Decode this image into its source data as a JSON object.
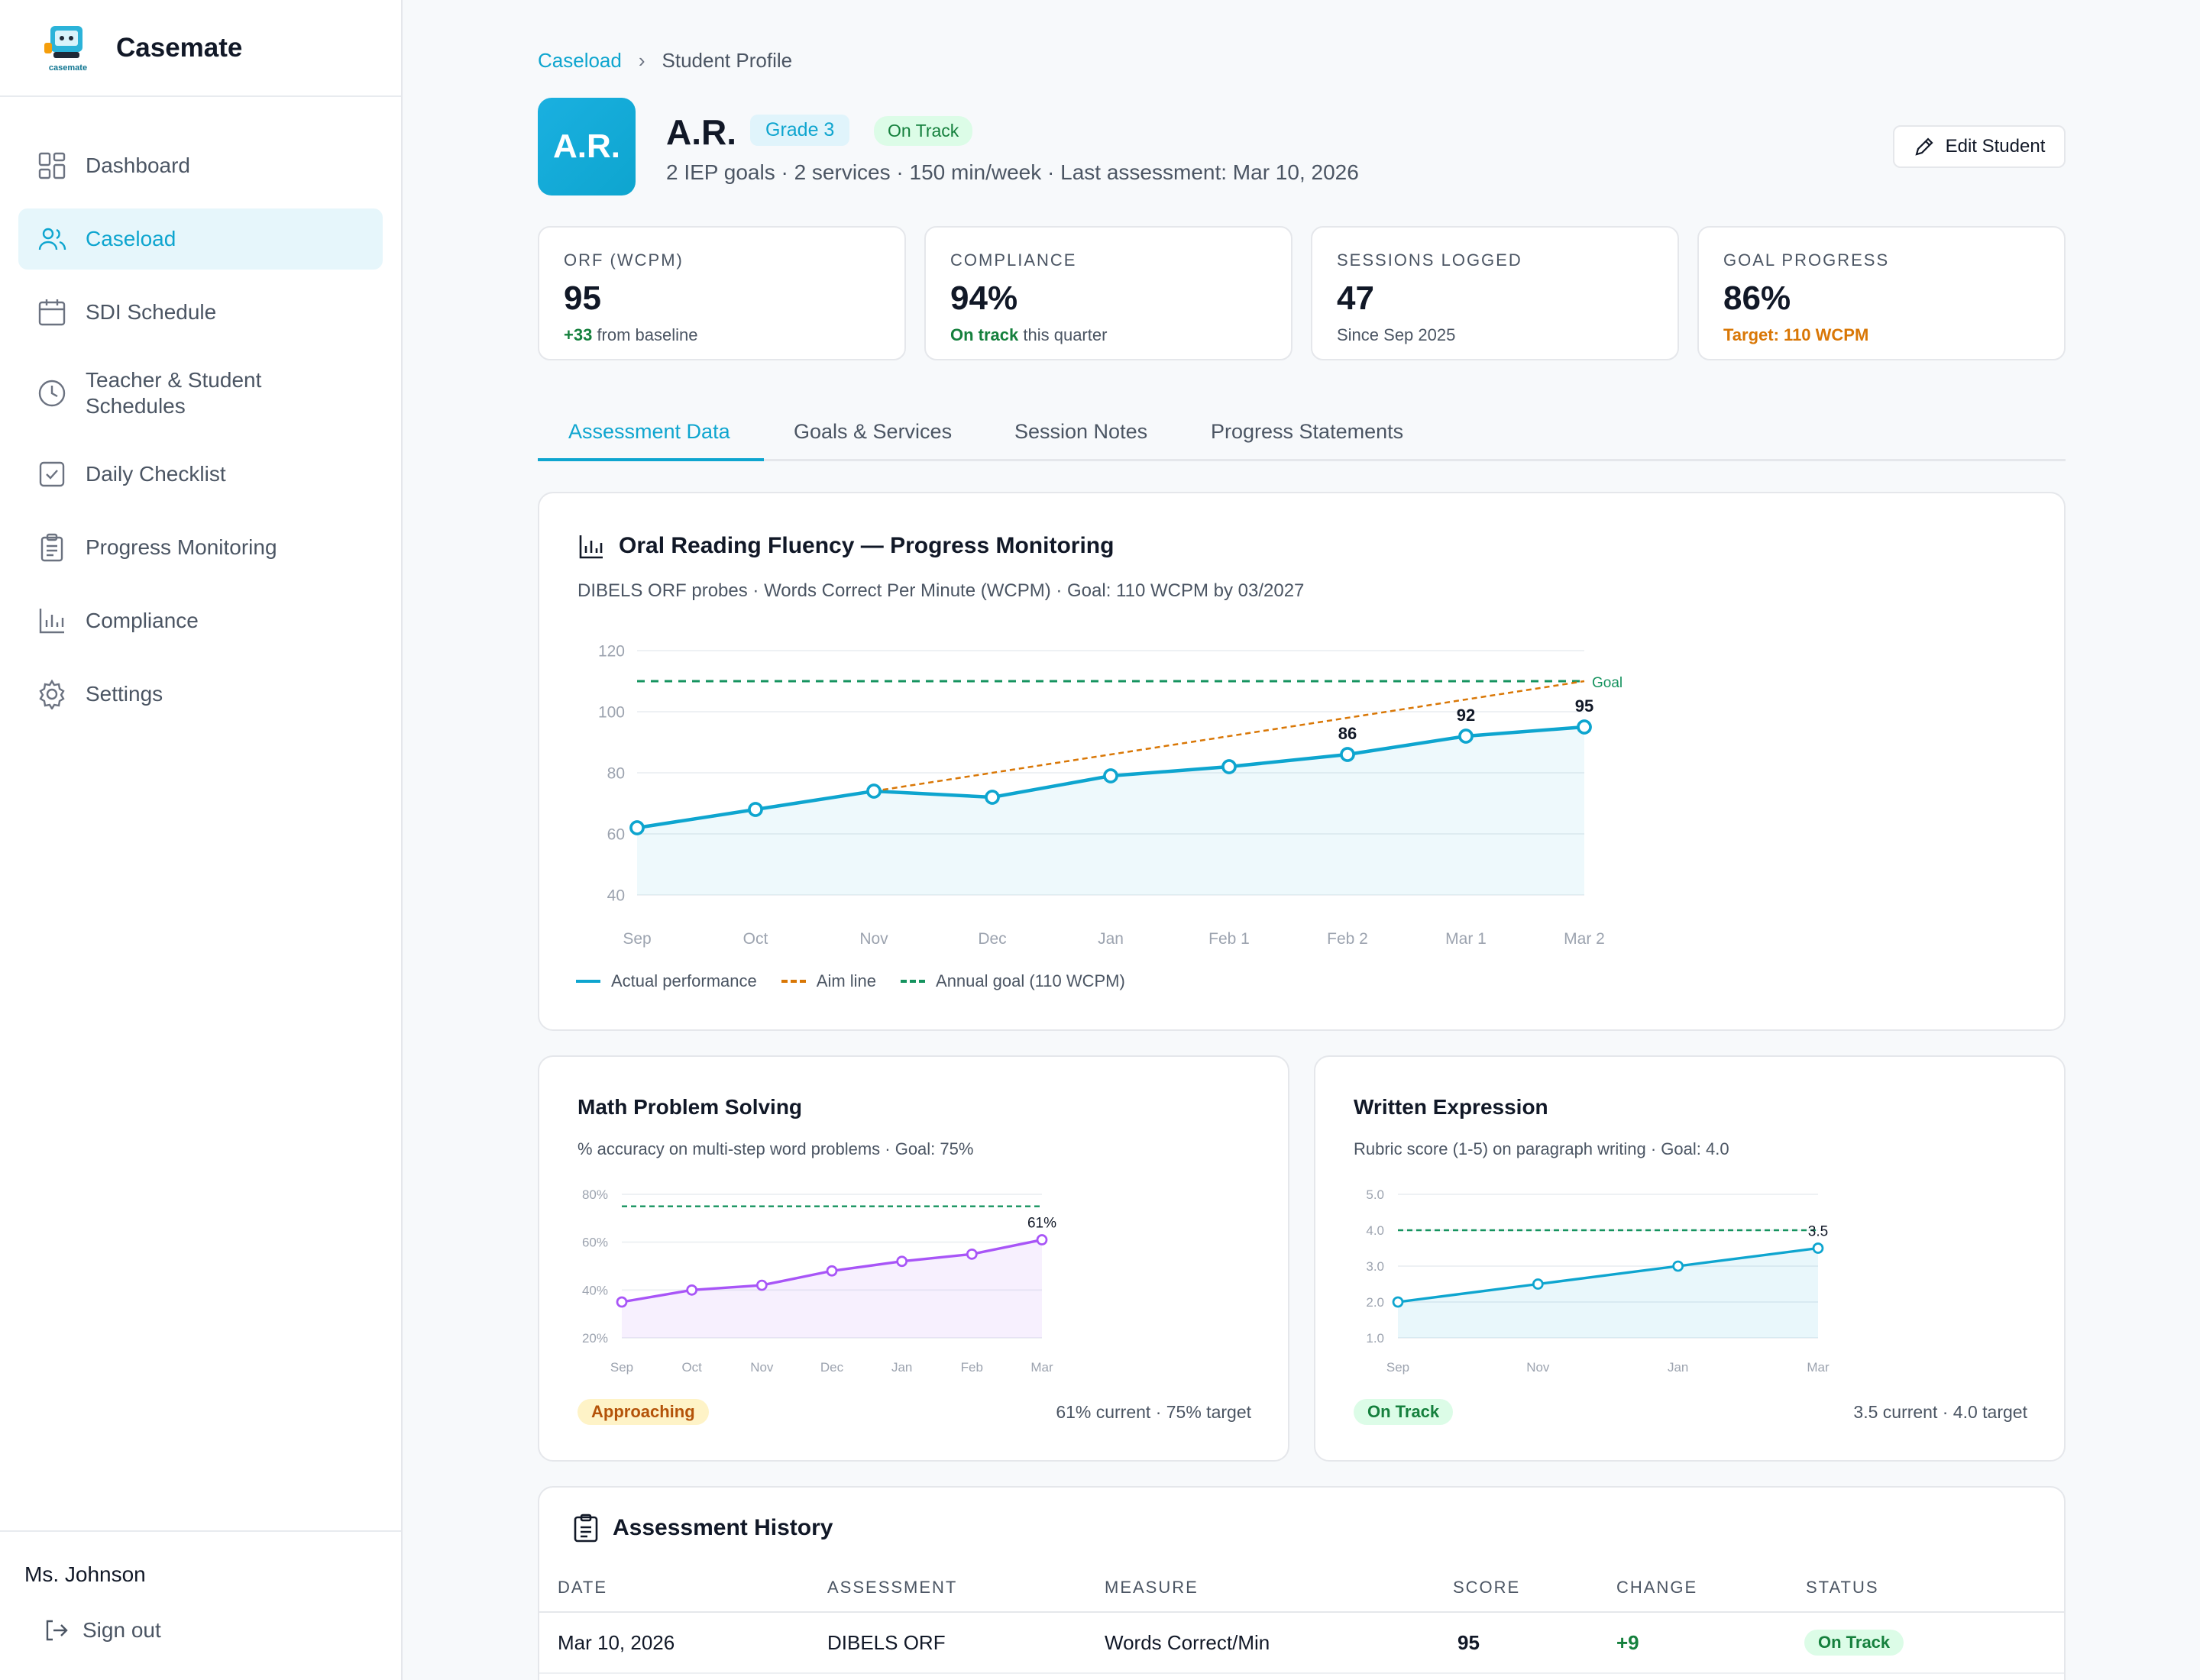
{
  "brand": {
    "name": "Casemate",
    "logo_text": "casemate"
  },
  "nav": {
    "items": [
      {
        "label": "Dashboard",
        "icon": "dashboard-icon"
      },
      {
        "label": "Caseload",
        "icon": "users-icon"
      },
      {
        "label": "SDI Schedule",
        "icon": "calendar-icon"
      },
      {
        "label": "Teacher & Student Schedules",
        "icon": "clock-icon"
      },
      {
        "label": "Daily Checklist",
        "icon": "checkbox-icon"
      },
      {
        "label": "Progress Monitoring",
        "icon": "clipboard-icon"
      },
      {
        "label": "Compliance",
        "icon": "bar-chart-icon"
      },
      {
        "label": "Settings",
        "icon": "gear-icon"
      }
    ],
    "active": "Caseload"
  },
  "user": {
    "name": "Ms. Johnson",
    "signout": "Sign out"
  },
  "breadcrumb": {
    "parent": "Caseload",
    "current": "Student Profile"
  },
  "student": {
    "initials": "A.R.",
    "name": "A.R.",
    "grade": "Grade 3",
    "status": "On Track",
    "meta": "2 IEP goals · 2 services · 150 min/week · Last assessment: Mar 10, 2026",
    "edit_label": "Edit Student"
  },
  "stats": [
    {
      "label": "ORF (WCPM)",
      "value": "95",
      "sub_strong": "+33",
      "sub_rest": " from baseline",
      "tone": "green"
    },
    {
      "label": "COMPLIANCE",
      "value": "94%",
      "sub_strong": "On track",
      "sub_rest": " this quarter",
      "tone": "green"
    },
    {
      "label": "SESSIONS LOGGED",
      "value": "47",
      "sub_strong": "",
      "sub_rest": "Since Sep 2025",
      "tone": ""
    },
    {
      "label": "GOAL PROGRESS",
      "value": "86%",
      "sub_strong": "Target: 110 WCPM",
      "sub_rest": "",
      "tone": "orange"
    }
  ],
  "tabs": [
    "Assessment Data",
    "Goals & Services",
    "Session Notes",
    "Progress Statements"
  ],
  "orf_card": {
    "title": "Oral Reading Fluency — Progress Monitoring",
    "subtitle": "DIBELS ORF probes · Words Correct Per Minute (WCPM) · Goal: 110 WCPM by 03/2027",
    "legend": [
      "Actual performance",
      "Aim line",
      "Annual goal (110 WCPM)"
    ]
  },
  "math_card": {
    "title": "Math Problem Solving",
    "subtitle": "% accuracy on multi-step word problems · Goal: 75%",
    "status": "Approaching",
    "summary": "61% current · 75% target"
  },
  "writing_card": {
    "title": "Written Expression",
    "subtitle": "Rubric score (1-5) on paragraph writing · Goal: 4.0",
    "status": "On Track",
    "summary": "3.5 current · 4.0 target"
  },
  "chart_data": [
    {
      "type": "line",
      "x": [
        "Sep",
        "Oct",
        "Nov",
        "Dec",
        "Jan",
        "Feb 1",
        "Feb 2",
        "Mar 1",
        "Mar 2"
      ],
      "series": [
        {
          "name": "Actual performance",
          "values": [
            62,
            68,
            74,
            72,
            79,
            82,
            86,
            92,
            95
          ],
          "color": "#0ea5cf"
        },
        {
          "name": "Aim line",
          "values": [
            null,
            null,
            74,
            null,
            null,
            null,
            null,
            null,
            110
          ],
          "color": "#d97706"
        },
        {
          "name": "Annual goal (110 WCPM)",
          "values": [
            110,
            110,
            110,
            110,
            110,
            110,
            110,
            110,
            110
          ],
          "color": "#15935f"
        }
      ],
      "point_labels": {
        "6": "86",
        "7": "92",
        "8": "95"
      },
      "goal_label": "Goal",
      "yticks": [
        40,
        60,
        80,
        100,
        120
      ],
      "ylim": [
        40,
        120
      ]
    },
    {
      "type": "line",
      "x": [
        "Sep",
        "Oct",
        "Nov",
        "Dec",
        "Jan",
        "Feb",
        "Mar"
      ],
      "series": [
        {
          "values": [
            35,
            40,
            42,
            48,
            52,
            55,
            61
          ],
          "color": "#a855f7"
        }
      ],
      "goal": 75,
      "last_label": "61%",
      "yticks": [
        "20%",
        "40%",
        "60%",
        "80%"
      ],
      "ylim": [
        20,
        80
      ]
    },
    {
      "type": "line",
      "x": [
        "Sep",
        "Nov",
        "Jan",
        "Mar"
      ],
      "series": [
        {
          "values": [
            2.0,
            2.5,
            3.0,
            3.5
          ],
          "color": "#0ea5cf"
        }
      ],
      "goal": 4.0,
      "last_label": "3.5",
      "yticks": [
        "1.0",
        "2.0",
        "3.0",
        "4.0",
        "5.0"
      ],
      "ylim": [
        1,
        5
      ]
    }
  ],
  "history": {
    "title": "Assessment History",
    "columns": [
      "DATE",
      "ASSESSMENT",
      "MEASURE",
      "SCORE",
      "CHANGE",
      "STATUS"
    ],
    "rows": [
      {
        "date": "Mar 10, 2026",
        "assessment": "DIBELS ORF",
        "measure": "Words Correct/Min",
        "score": "95",
        "change": "+9",
        "status": "On Track"
      }
    ]
  }
}
